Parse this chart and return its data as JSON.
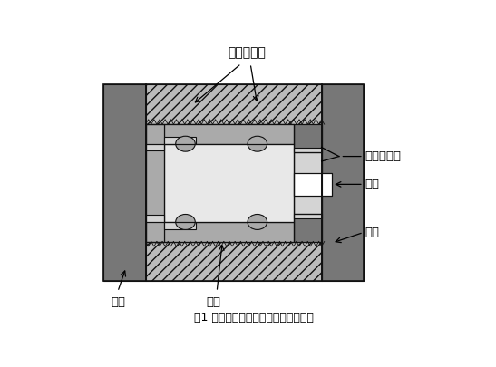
{
  "title": "图1 往复型密封件静密封性能测试原理",
  "labels": {
    "mifengjian": "密封件试样",
    "xielou": "泄漏测量孔",
    "yali": "压力",
    "duangai": "端盖",
    "qiangti": "腔体",
    "chatou": "插头"
  },
  "bg": "#ffffff",
  "C_dark": "#777777",
  "C_med": "#aaaaaa",
  "C_light": "#d4d4d4",
  "C_lighter": "#e8e8e8",
  "C_white": "#ffffff",
  "C_border": "#111111",
  "C_hatch_bg": "#bbbbbb"
}
